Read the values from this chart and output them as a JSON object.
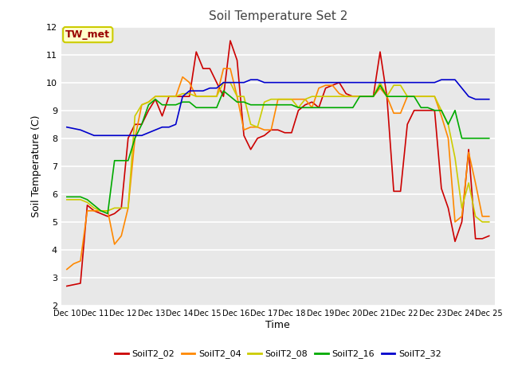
{
  "title": "Soil Temperature Set 2",
  "xlabel": "Time",
  "ylabel": "Soil Temperature (C)",
  "ylim": [
    2.0,
    12.0
  ],
  "yticks": [
    2.0,
    3.0,
    4.0,
    5.0,
    6.0,
    7.0,
    8.0,
    9.0,
    10.0,
    11.0,
    12.0
  ],
  "x_labels": [
    "Dec 10",
    "Dec 11",
    "Dec 12",
    "Dec 13",
    "Dec 14",
    "Dec 15",
    "Dec 16",
    "Dec 17",
    "Dec 18",
    "Dec 19",
    "Dec 20",
    "Dec 21",
    "Dec 22",
    "Dec 23",
    "Dec 24",
    "Dec 25"
  ],
  "annotation_text": "TW_met",
  "annotation_color": "#990000",
  "annotation_bg": "#ffffcc",
  "annotation_border": "#cccc00",
  "series_colors": [
    "#cc0000",
    "#ff8800",
    "#cccc00",
    "#00aa00",
    "#0000cc"
  ],
  "series_labels": [
    "SoilT2_02",
    "SoilT2_04",
    "SoilT2_08",
    "SoilT2_16",
    "SoilT2_32"
  ],
  "fig_facecolor": "#ffffff",
  "plot_facecolor": "#e8e8e8",
  "grid_color": "#ffffff",
  "SoilT2_02": [
    2.7,
    2.75,
    2.8,
    5.6,
    5.4,
    5.3,
    5.2,
    5.3,
    5.5,
    8.0,
    8.5,
    8.5,
    9.0,
    9.4,
    8.8,
    9.5,
    9.5,
    9.5,
    9.5,
    11.1,
    10.5,
    10.5,
    10.0,
    9.5,
    11.5,
    10.8,
    8.1,
    7.6,
    8.0,
    8.1,
    8.3,
    8.3,
    8.2,
    8.2,
    9.0,
    9.2,
    9.3,
    9.1,
    9.8,
    9.9,
    10.0,
    9.6,
    9.5,
    9.5,
    9.5,
    9.5,
    11.1,
    9.5,
    6.1,
    6.1,
    8.5,
    9.0,
    9.0,
    9.0,
    9.0,
    6.2,
    5.5,
    4.3,
    5.0,
    7.6,
    4.4,
    4.4,
    4.5
  ],
  "SoilT2_04": [
    3.3,
    3.5,
    3.6,
    5.4,
    5.4,
    5.4,
    5.4,
    4.2,
    4.5,
    5.5,
    8.0,
    9.2,
    9.3,
    9.5,
    9.5,
    9.5,
    9.5,
    10.2,
    10.0,
    9.5,
    9.5,
    9.5,
    9.5,
    10.5,
    10.5,
    9.5,
    8.3,
    8.4,
    8.4,
    8.3,
    8.3,
    9.4,
    9.4,
    9.4,
    9.4,
    9.4,
    9.1,
    9.8,
    9.9,
    9.9,
    9.6,
    9.5,
    9.5,
    9.5,
    9.5,
    9.5,
    9.8,
    9.5,
    8.9,
    8.9,
    9.5,
    9.5,
    9.5,
    9.5,
    9.5,
    8.8,
    8.0,
    5.0,
    5.2,
    7.5,
    6.4,
    5.2,
    5.2
  ],
  "SoilT2_08": [
    5.8,
    5.8,
    5.8,
    5.7,
    5.5,
    5.4,
    5.4,
    5.5,
    5.5,
    5.5,
    8.8,
    9.2,
    9.3,
    9.5,
    9.5,
    9.5,
    9.5,
    9.6,
    9.6,
    9.5,
    9.5,
    9.5,
    9.5,
    10.0,
    10.0,
    9.5,
    9.5,
    8.5,
    8.4,
    9.3,
    9.4,
    9.4,
    9.4,
    9.4,
    9.1,
    9.4,
    9.5,
    9.5,
    9.5,
    9.5,
    9.5,
    9.5,
    9.5,
    9.5,
    9.5,
    9.5,
    10.0,
    9.5,
    9.9,
    9.9,
    9.5,
    9.5,
    9.5,
    9.5,
    9.5,
    9.0,
    8.5,
    7.3,
    5.5,
    6.4,
    5.2,
    5.0,
    5.0
  ],
  "SoilT2_16": [
    5.9,
    5.9,
    5.9,
    5.8,
    5.6,
    5.4,
    5.3,
    7.2,
    7.2,
    7.2,
    8.0,
    8.5,
    9.2,
    9.4,
    9.2,
    9.2,
    9.2,
    9.3,
    9.3,
    9.1,
    9.1,
    9.1,
    9.1,
    9.7,
    9.5,
    9.3,
    9.3,
    9.2,
    9.2,
    9.2,
    9.2,
    9.2,
    9.2,
    9.2,
    9.1,
    9.1,
    9.1,
    9.1,
    9.1,
    9.1,
    9.1,
    9.1,
    9.1,
    9.5,
    9.5,
    9.5,
    9.9,
    9.5,
    9.5,
    9.5,
    9.5,
    9.5,
    9.1,
    9.1,
    9.0,
    9.0,
    8.5,
    9.0,
    8.0,
    8.0,
    8.0,
    8.0,
    8.0
  ],
  "SoilT2_32": [
    8.4,
    8.35,
    8.3,
    8.2,
    8.1,
    8.1,
    8.1,
    8.1,
    8.1,
    8.1,
    8.1,
    8.1,
    8.2,
    8.3,
    8.4,
    8.4,
    8.5,
    9.5,
    9.7,
    9.7,
    9.7,
    9.8,
    9.8,
    10.0,
    10.0,
    10.0,
    10.0,
    10.1,
    10.1,
    10.0,
    10.0,
    10.0,
    10.0,
    10.0,
    10.0,
    10.0,
    10.0,
    10.0,
    10.0,
    10.0,
    10.0,
    10.0,
    10.0,
    10.0,
    10.0,
    10.0,
    10.0,
    10.0,
    10.0,
    10.0,
    10.0,
    10.0,
    10.0,
    10.0,
    10.0,
    10.1,
    10.1,
    10.1,
    9.8,
    9.5,
    9.4,
    9.4,
    9.4
  ]
}
